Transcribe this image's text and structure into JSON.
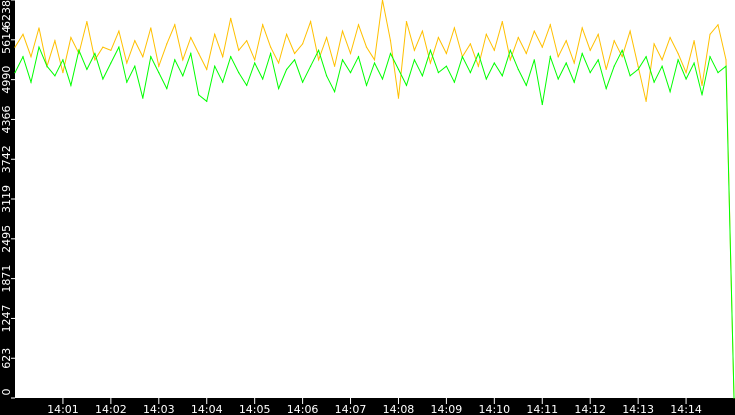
{
  "chart_data": {
    "type": "line",
    "title": "",
    "xlabel": "",
    "ylabel": "",
    "ylim": [
      0,
      6238
    ],
    "y_ticks": [
      "0",
      "623",
      "1247",
      "1871",
      "2495",
      "3119",
      "3742",
      "4366",
      "4990",
      "5614",
      "6238"
    ],
    "x_ticks": [
      "14:01",
      "14:02",
      "14:03",
      "14:04",
      "14:05",
      "14:06",
      "14:07",
      "14:08",
      "14:09",
      "14:10",
      "14:11",
      "14:12",
      "14:13",
      "14:14"
    ],
    "grid": false,
    "background": "#ffffff",
    "x": [
      "14:00:00",
      "14:00:10",
      "14:00:20",
      "14:00:30",
      "14:00:40",
      "14:00:50",
      "14:01:00",
      "14:01:10",
      "14:01:20",
      "14:01:30",
      "14:01:40",
      "14:01:50",
      "14:02:00",
      "14:02:10",
      "14:02:20",
      "14:02:30",
      "14:02:40",
      "14:02:50",
      "14:03:00",
      "14:03:10",
      "14:03:20",
      "14:03:30",
      "14:03:40",
      "14:03:50",
      "14:04:00",
      "14:04:10",
      "14:04:20",
      "14:04:30",
      "14:04:40",
      "14:04:50",
      "14:05:00",
      "14:05:10",
      "14:05:20",
      "14:05:30",
      "14:05:40",
      "14:05:50",
      "14:06:00",
      "14:06:10",
      "14:06:20",
      "14:06:30",
      "14:06:40",
      "14:06:50",
      "14:07:00",
      "14:07:10",
      "14:07:20",
      "14:07:30",
      "14:07:40",
      "14:07:50",
      "14:08:00",
      "14:08:10",
      "14:08:20",
      "14:08:30",
      "14:08:40",
      "14:08:50",
      "14:09:00",
      "14:09:10",
      "14:09:20",
      "14:09:30",
      "14:09:40",
      "14:09:50",
      "14:10:00",
      "14:10:10",
      "14:10:20",
      "14:10:30",
      "14:10:40",
      "14:10:50",
      "14:11:00",
      "14:11:10",
      "14:11:20",
      "14:11:30",
      "14:11:40",
      "14:11:50",
      "14:12:00",
      "14:12:10",
      "14:12:20",
      "14:12:30",
      "14:12:40",
      "14:12:50",
      "14:13:00",
      "14:13:10",
      "14:13:20",
      "14:13:30",
      "14:13:40",
      "14:13:50",
      "14:14:00",
      "14:14:10",
      "14:14:20",
      "14:14:30",
      "14:14:40",
      "14:14:50",
      "14:15:00"
    ],
    "series": [
      {
        "color": "#ffc000",
        "values": [
          5500,
          5700,
          5350,
          5800,
          5200,
          5600,
          5100,
          5650,
          5400,
          5900,
          5300,
          5500,
          5450,
          5750,
          5250,
          5600,
          5350,
          5800,
          5200,
          5550,
          5850,
          5300,
          5650,
          5400,
          5150,
          5700,
          5350,
          5950,
          5450,
          5600,
          5300,
          5850,
          5500,
          5250,
          5700,
          5400,
          5550,
          5900,
          5300,
          5650,
          5200,
          5750,
          5400,
          5850,
          5500,
          5300,
          6238,
          5600,
          4700,
          5900,
          5450,
          5750,
          5250,
          5650,
          5400,
          5800,
          5350,
          5550,
          5200,
          5700,
          5450,
          5900,
          5300,
          5650,
          5400,
          5750,
          5500,
          5850,
          5350,
          5600,
          5250,
          5800,
          5450,
          5700,
          5150,
          5600,
          5350,
          5750,
          5200,
          4650,
          5550,
          5300,
          5650,
          5400,
          5100,
          5600,
          4900,
          5700,
          5850,
          5300,
          0
        ]
      },
      {
        "color": "#00ff00",
        "values": [
          5100,
          5350,
          4950,
          5500,
          5200,
          5050,
          5300,
          4900,
          5450,
          5150,
          5400,
          5000,
          5250,
          5500,
          4950,
          5200,
          4700,
          5350,
          5100,
          4850,
          5300,
          5050,
          5400,
          4750,
          4650,
          5200,
          4950,
          5350,
          5100,
          4900,
          5250,
          5000,
          5400,
          4850,
          5150,
          5300,
          4950,
          5200,
          5450,
          5050,
          4800,
          5300,
          5100,
          5350,
          4900,
          5250,
          5000,
          5400,
          5150,
          4900,
          5300,
          5050,
          5450,
          5100,
          5200,
          4950,
          5350,
          5100,
          5400,
          5000,
          5250,
          5050,
          5450,
          5150,
          4900,
          5300,
          4600,
          5350,
          5000,
          5250,
          4950,
          5400,
          5100,
          5300,
          4850,
          5200,
          5450,
          5050,
          5150,
          5350,
          4950,
          5200,
          4800,
          5300,
          5000,
          5250,
          4750,
          5350,
          5100,
          5200,
          0
        ]
      }
    ]
  }
}
